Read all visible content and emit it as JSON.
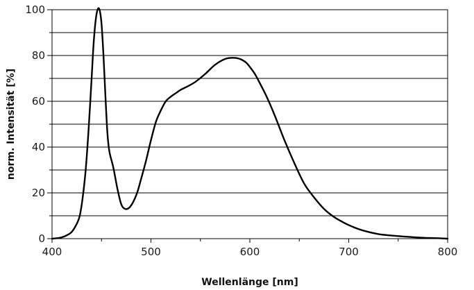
{
  "chart_data": {
    "type": "line",
    "title": "",
    "xlabel": "Wellenlänge [nm]",
    "ylabel": "norm. Intensität [%]",
    "xlim": [
      400,
      800
    ],
    "ylim": [
      0,
      100
    ],
    "x_ticks": [
      400,
      500,
      600,
      700,
      800
    ],
    "y_ticks": [
      0,
      20,
      40,
      60,
      80,
      100
    ],
    "y_minor_gridlines": [
      10,
      30,
      50,
      70,
      90
    ],
    "grid": "horizontal",
    "legend": "none",
    "series": [
      {
        "color": "#000000",
        "x": [
          400,
          405,
          410,
          415,
          420,
          425,
          428,
          431,
          434,
          437,
          440,
          442,
          444,
          446,
          448,
          450,
          452,
          454,
          456,
          458,
          462,
          466,
          470,
          474,
          478,
          482,
          486,
          490,
          495,
          500,
          505,
          510,
          515,
          520,
          525,
          530,
          537,
          545,
          555,
          565,
          575,
          583,
          590,
          596,
          600,
          605,
          610,
          617,
          625,
          635,
          645,
          655,
          665,
          675,
          685,
          695,
          705,
          715,
          730,
          745,
          760,
          775,
          790,
          800
        ],
        "y": [
          0,
          0.2,
          0.6,
          1.5,
          3,
          6.5,
          10,
          18,
          30,
          48,
          70,
          85,
          95,
          100,
          100,
          94,
          80,
          62,
          46,
          38,
          31,
          22,
          15,
          13,
          13.5,
          16,
          20,
          26,
          34,
          43,
          51,
          56,
          60,
          62,
          63.5,
          65,
          66.5,
          68.5,
          72,
          76,
          78.5,
          79,
          78.5,
          77,
          75,
          72,
          68,
          62,
          54,
          43,
          33,
          24,
          18,
          13,
          9.5,
          7,
          5,
          3.5,
          2,
          1.3,
          0.8,
          0.4,
          0.2,
          0
        ]
      }
    ]
  }
}
